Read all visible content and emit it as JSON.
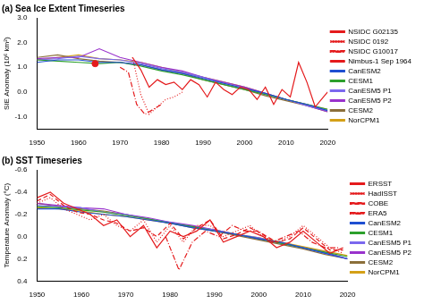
{
  "chart_data": [
    {
      "type": "line",
      "title": "(a) Sea Ice Extent Timeseries",
      "y_label": "SIE Anomaly (10⁶ km²)",
      "xlim": [
        1950,
        2020
      ],
      "xticks": [
        1950,
        1960,
        1970,
        1980,
        1990,
        2000,
        2010,
        2020
      ],
      "ylim": [
        -1.5,
        3.0
      ],
      "yticks": [
        {
          "value": -1,
          "label": "-1.0"
        },
        {
          "value": 0,
          "label": "0.0"
        },
        {
          "value": 1,
          "label": "1.0"
        },
        {
          "value": 2,
          "label": "2.0"
        },
        {
          "value": 3,
          "label": "3.0"
        }
      ],
      "grid": false,
      "legend": "right",
      "series": [
        {
          "name": "NSIDC G02135",
          "color": "#e41a1c",
          "line_style": "solid",
          "x": [
            1973,
            1975,
            1977,
            1979,
            1981,
            1983,
            1985,
            1987,
            1989,
            1991,
            1993,
            1995,
            1997,
            1999,
            2001,
            2003,
            2005,
            2007,
            2009,
            2011,
            2013,
            2015,
            2017,
            2019,
            2020
          ],
          "values": [
            1.4,
            0.9,
            0.2,
            0.5,
            0.3,
            0.4,
            0.1,
            0.5,
            0.3,
            -0.2,
            0.4,
            0.1,
            -0.1,
            0.2,
            0.1,
            -0.3,
            0.2,
            -0.5,
            0.1,
            -0.2,
            1.2,
            0.4,
            -0.6,
            -0.2,
            0.0
          ]
        },
        {
          "name": "NSIDC 0192",
          "color": "#e41a1c",
          "line_style": "dotted",
          "x": [
            1973,
            1975,
            1977,
            1979,
            1981,
            1983,
            1985
          ],
          "values": [
            1.4,
            -0.1,
            -0.9,
            -0.6,
            -0.3,
            -0.2,
            0.0
          ]
        },
        {
          "name": "NSIDC G10017",
          "color": "#e41a1c",
          "line_style": "dashdot",
          "x": [
            1970,
            1972,
            1974,
            1976,
            1978,
            1980
          ],
          "values": [
            1.0,
            0.8,
            -0.5,
            -0.9,
            -0.7,
            -0.5
          ]
        },
        {
          "name": "Nimbus-1 Sep 1964",
          "color": "#e41a1c",
          "type": "scatter",
          "marker": "circle",
          "x": [
            1964
          ],
          "values": [
            1.15
          ]
        },
        {
          "name": "CanESM2",
          "color": "#1f4fd1",
          "line_style": "solid",
          "x": [
            1950,
            1955,
            1960,
            1965,
            1970,
            1975,
            1980,
            1985,
            1990,
            1995,
            2000,
            2005,
            2010,
            2015,
            2020
          ],
          "values": [
            1.2,
            1.3,
            1.3,
            1.2,
            1.2,
            1.1,
            0.9,
            0.75,
            0.55,
            0.35,
            0.15,
            -0.05,
            -0.3,
            -0.5,
            -0.75
          ]
        },
        {
          "name": "CESM1",
          "color": "#2ca02c",
          "line_style": "solid",
          "x": [
            1950,
            1955,
            1960,
            1965,
            1970,
            1975,
            1980,
            1985,
            1990,
            1995,
            2000,
            2005,
            2010,
            2015,
            2020
          ],
          "values": [
            1.3,
            1.25,
            1.2,
            1.15,
            1.2,
            1.05,
            0.85,
            0.7,
            0.5,
            0.3,
            0.1,
            -0.1,
            -0.3,
            -0.5,
            -0.7
          ]
        },
        {
          "name": "CanESM5 P1",
          "color": "#7b68ee",
          "line_style": "solid",
          "x": [
            1950,
            1955,
            1960,
            1965,
            1970,
            1975,
            1980,
            1985,
            1990,
            1995,
            2000,
            2005,
            2010,
            2015,
            2020
          ],
          "values": [
            1.3,
            1.35,
            1.45,
            1.35,
            1.3,
            1.15,
            0.95,
            0.8,
            0.6,
            0.35,
            0.15,
            -0.1,
            -0.3,
            -0.55,
            -0.75
          ]
        },
        {
          "name": "CanESM5 P2",
          "color": "#9932cc",
          "line_style": "solid",
          "x": [
            1950,
            1955,
            1960,
            1965,
            1970,
            1975,
            1980,
            1985,
            1990,
            1995,
            2000,
            2005,
            2010,
            2015,
            2020
          ],
          "values": [
            1.35,
            1.4,
            1.4,
            1.75,
            1.4,
            1.2,
            1.0,
            0.85,
            0.6,
            0.4,
            0.2,
            -0.05,
            -0.3,
            -0.55,
            -0.8
          ]
        },
        {
          "name": "CESM2",
          "color": "#8b6f3a",
          "line_style": "solid",
          "x": [
            1950,
            1955,
            1960,
            1965,
            1970,
            1975,
            1980,
            1985,
            1990,
            1995,
            2000,
            2005,
            2010,
            2015,
            2020
          ],
          "values": [
            1.4,
            1.5,
            1.35,
            1.25,
            1.2,
            1.1,
            0.9,
            0.75,
            0.5,
            0.3,
            0.1,
            -0.15,
            -0.35,
            -0.55,
            -0.8
          ]
        },
        {
          "name": "NorCPM1",
          "color": "#d4a017",
          "line_style": "solid",
          "x": [
            1950,
            1955,
            1960,
            1965,
            1970,
            1975,
            1980,
            1985,
            1990,
            1995,
            2000,
            2005,
            2010,
            2015,
            2020
          ],
          "values": [
            1.3,
            1.4,
            1.5,
            1.35,
            1.3,
            1.2,
            1.0,
            0.8,
            0.6,
            0.4,
            0.2,
            -0.05,
            -0.3,
            -0.5,
            -0.7
          ]
        }
      ]
    },
    {
      "type": "line",
      "title": "(b) SST Timeseries",
      "y_label": "Temperature Anomaly (°C)",
      "xlim": [
        1950,
        2020
      ],
      "xticks": [
        1950,
        1960,
        1970,
        1980,
        1990,
        2000,
        2010,
        2020
      ],
      "ylim": [
        0.4,
        -0.6
      ],
      "yticks": [
        -0.6,
        -0.4,
        -0.2,
        {
          "value": 0,
          "label": "0.0"
        },
        0.2,
        0.4
      ],
      "grid": false,
      "legend": "right",
      "series": [
        {
          "name": "ERSST",
          "color": "#e41a1c",
          "line_style": "solid",
          "x": [
            1950,
            1953,
            1956,
            1959,
            1962,
            1965,
            1968,
            1971,
            1974,
            1977,
            1980,
            1983,
            1986,
            1989,
            1992,
            1995,
            1998,
            2001,
            2004,
            2007,
            2010,
            2013,
            2016,
            2019
          ],
          "values": [
            -0.35,
            -0.4,
            -0.3,
            -0.25,
            -0.2,
            -0.1,
            -0.15,
            0.0,
            -0.1,
            0.1,
            -0.05,
            0.0,
            -0.05,
            -0.15,
            0.05,
            0.0,
            -0.05,
            0.0,
            0.1,
            0.05,
            -0.05,
            0.05,
            0.15,
            0.1
          ]
        },
        {
          "name": "HadISST",
          "color": "#e41a1c",
          "line_style": "dotted",
          "x": [
            1950,
            1953,
            1956,
            1959,
            1962,
            1965,
            1968,
            1971,
            1974,
            1977,
            1980,
            1983,
            1986,
            1989,
            1992,
            1995,
            1998,
            2001,
            2004,
            2007,
            2010,
            2013,
            2016,
            2019
          ],
          "values": [
            -0.3,
            -0.35,
            -0.25,
            -0.2,
            -0.15,
            -0.2,
            -0.1,
            -0.05,
            -0.15,
            0.05,
            -0.1,
            0.05,
            -0.1,
            -0.1,
            0.0,
            -0.05,
            -0.1,
            0.0,
            0.05,
            0.0,
            -0.1,
            0.0,
            0.1,
            0.15
          ]
        },
        {
          "name": "COBE",
          "color": "#e41a1c",
          "line_style": "dashed",
          "x": [
            1950,
            1953,
            1956,
            1959,
            1962,
            1965,
            1968,
            1971,
            1974,
            1977,
            1980,
            1983,
            1986,
            1989,
            1992,
            1995,
            1998,
            2001,
            2004,
            2007,
            2010,
            2013,
            2016,
            2019
          ],
          "values": [
            -0.32,
            -0.38,
            -0.28,
            -0.22,
            -0.2,
            -0.15,
            -0.12,
            -0.05,
            -0.08,
            0.0,
            -0.12,
            0.02,
            -0.08,
            -0.15,
            0.02,
            -0.02,
            -0.08,
            -0.02,
            0.05,
            0.02,
            -0.08,
            0.02,
            0.12,
            0.12
          ]
        },
        {
          "name": "ERA5",
          "color": "#e41a1c",
          "line_style": "dashdot",
          "x": [
            1979,
            1982,
            1985,
            1988,
            1991,
            1994,
            1997,
            2000,
            2003,
            2006,
            2009,
            2012,
            2015,
            2018
          ],
          "values": [
            0.0,
            0.3,
            0.05,
            -0.05,
            0.0,
            -0.1,
            -0.05,
            -0.05,
            0.05,
            0.0,
            -0.05,
            0.05,
            0.1,
            0.1
          ]
        },
        {
          "name": "CanESM2",
          "color": "#1f4fd1",
          "line_style": "solid",
          "x": [
            1950,
            1955,
            1960,
            1965,
            1970,
            1975,
            1980,
            1985,
            1990,
            1995,
            2000,
            2005,
            2010,
            2015,
            2020
          ],
          "values": [
            -0.25,
            -0.25,
            -0.22,
            -0.2,
            -0.18,
            -0.15,
            -0.12,
            -0.08,
            -0.05,
            -0.02,
            0.02,
            0.05,
            0.1,
            0.15,
            0.2
          ]
        },
        {
          "name": "CESM1",
          "color": "#2ca02c",
          "line_style": "solid",
          "x": [
            1950,
            1955,
            1960,
            1965,
            1970,
            1975,
            1980,
            1985,
            1990,
            1995,
            2000,
            2005,
            2010,
            2015,
            2020
          ],
          "values": [
            -0.27,
            -0.26,
            -0.24,
            -0.22,
            -0.19,
            -0.16,
            -0.12,
            -0.09,
            -0.05,
            -0.02,
            0.02,
            0.06,
            0.1,
            0.14,
            0.18
          ]
        },
        {
          "name": "CanESM5 P1",
          "color": "#7b68ee",
          "line_style": "solid",
          "x": [
            1950,
            1955,
            1960,
            1965,
            1970,
            1975,
            1980,
            1985,
            1990,
            1995,
            2000,
            2005,
            2010,
            2015,
            2020
          ],
          "values": [
            -0.28,
            -0.27,
            -0.26,
            -0.22,
            -0.2,
            -0.16,
            -0.13,
            -0.09,
            -0.06,
            -0.02,
            0.01,
            0.06,
            0.1,
            0.15,
            0.2
          ]
        },
        {
          "name": "CanESM5 P2",
          "color": "#9932cc",
          "line_style": "solid",
          "x": [
            1950,
            1955,
            1960,
            1965,
            1970,
            1975,
            1980,
            1985,
            1990,
            1995,
            2000,
            2005,
            2010,
            2015,
            2020
          ],
          "values": [
            -0.3,
            -0.28,
            -0.26,
            -0.25,
            -0.2,
            -0.17,
            -0.13,
            -0.1,
            -0.06,
            -0.02,
            0.02,
            0.06,
            0.1,
            0.14,
            0.2
          ]
        },
        {
          "name": "CESM2",
          "color": "#8b6f3a",
          "line_style": "solid",
          "x": [
            1950,
            1955,
            1960,
            1965,
            1970,
            1975,
            1980,
            1985,
            1990,
            1995,
            2000,
            2005,
            2010,
            2015,
            2020
          ],
          "values": [
            -0.3,
            -0.27,
            -0.25,
            -0.23,
            -0.2,
            -0.16,
            -0.12,
            -0.08,
            -0.05,
            -0.01,
            0.03,
            0.07,
            0.11,
            0.16,
            0.2
          ]
        },
        {
          "name": "NorCPM1",
          "color": "#d4a017",
          "line_style": "solid",
          "x": [
            1950,
            1955,
            1960,
            1965,
            1970,
            1975,
            1980,
            1985,
            1990,
            1995,
            2000,
            2005,
            2010,
            2015,
            2020
          ],
          "values": [
            -0.26,
            -0.25,
            -0.23,
            -0.2,
            -0.18,
            -0.15,
            -0.12,
            -0.09,
            -0.06,
            -0.02,
            0.01,
            0.05,
            0.09,
            0.13,
            0.17
          ]
        }
      ]
    }
  ]
}
